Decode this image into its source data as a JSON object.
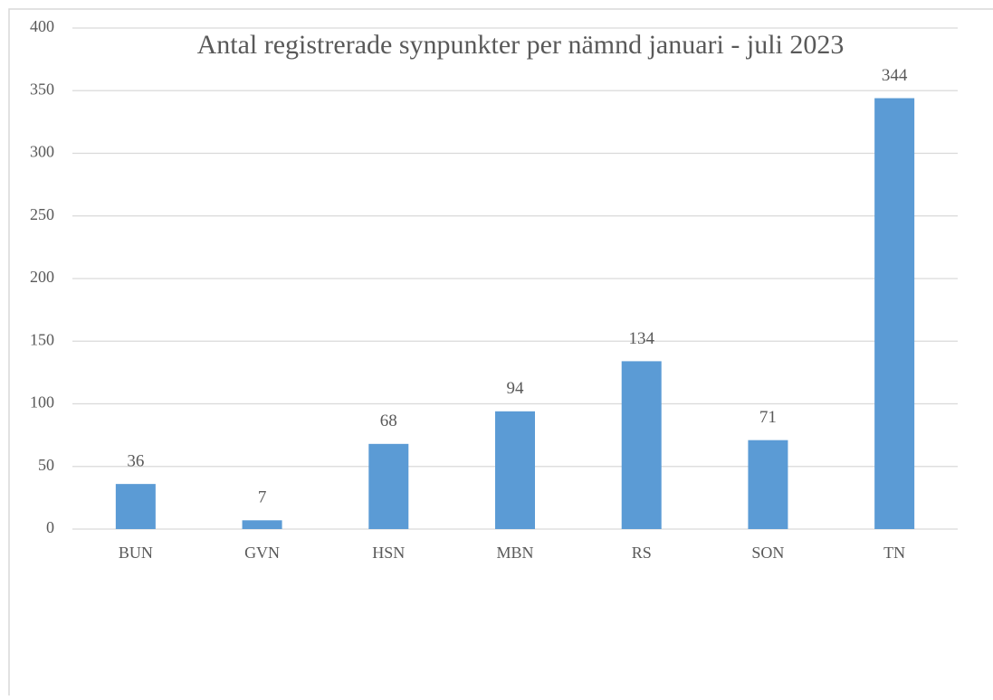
{
  "chart_data": {
    "type": "bar",
    "title": "Antal registrerade synpunkter per nämnd januari - juli 2023",
    "categories": [
      "BUN",
      "GVN",
      "HSN",
      "MBN",
      "RS",
      "SON",
      "TN"
    ],
    "values": [
      36,
      7,
      68,
      94,
      134,
      71,
      344
    ],
    "color": "#5b9bd5",
    "ylim": [
      0,
      400
    ],
    "yticks": [
      0,
      50,
      100,
      150,
      200,
      250,
      300,
      350,
      400
    ],
    "grid": true
  }
}
